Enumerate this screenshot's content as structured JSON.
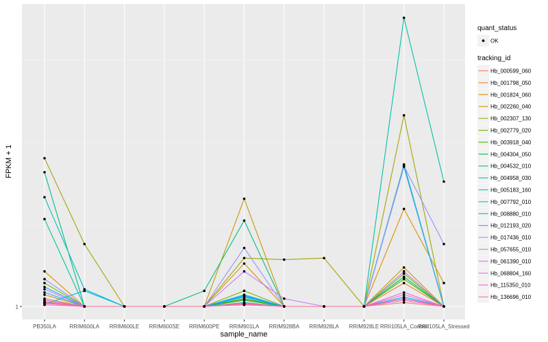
{
  "chart_data": {
    "type": "line",
    "title": "",
    "xlabel": "sample_name",
    "ylabel": "FPKM + 1",
    "ytick_labels": [
      {
        "value": 1,
        "label": "1"
      }
    ],
    "grid": true,
    "legend_position": "right",
    "categories": [
      "PB350LA",
      "RRIM600LA",
      "RRIM600LE",
      "RRIM600SE",
      "RRIM600PE",
      "RRIM901LA",
      "RRIM928BA",
      "RRIM928LA",
      "RRIM928LE",
      "RRII105LA_Control",
      "RRII105LA_Stressed"
    ],
    "legend": {
      "shape_title": "quant_status",
      "shape_items": [
        "OK"
      ],
      "color_title": "tracking_id"
    },
    "series": [
      {
        "name": "Hb_000599_060",
        "color": "#F8766D",
        "values": [
          1.06,
          1,
          1,
          1,
          1,
          1.03,
          1,
          1,
          1,
          1.05,
          1
        ]
      },
      {
        "name": "Hb_001798_050",
        "color": "#EA8331",
        "values": [
          1.1,
          1,
          1,
          1,
          1,
          1.09,
          1,
          1,
          1,
          1.3,
          1
        ]
      },
      {
        "name": "Hb_001824_060",
        "color": "#D89000",
        "values": [
          1.45,
          1,
          1,
          1,
          1,
          1.55,
          1,
          1,
          1,
          2.25,
          1.3
        ]
      },
      {
        "name": "Hb_002260_040",
        "color": "#C09B00",
        "values": [
          1.15,
          1,
          1,
          1,
          1,
          2.38,
          1,
          1,
          1,
          1.5,
          1
        ]
      },
      {
        "name": "Hb_002307_130",
        "color": "#A3A500",
        "values": [
          2.9,
          1.8,
          1,
          1,
          1,
          1.62,
          1.6,
          1.62,
          1,
          3.45,
          1
        ]
      },
      {
        "name": "Hb_002779_020",
        "color": "#7CAE00",
        "values": [
          1.3,
          1,
          1,
          1,
          1,
          1.2,
          1,
          1,
          1,
          1.42,
          1
        ]
      },
      {
        "name": "Hb_003918_040",
        "color": "#39B600",
        "values": [
          1.05,
          1,
          1,
          1,
          1,
          1.1,
          1,
          1,
          1,
          1.35,
          1
        ]
      },
      {
        "name": "Hb_004304_050",
        "color": "#00BB4E",
        "values": [
          1.08,
          1,
          1,
          1,
          1,
          1.08,
          1,
          1,
          1,
          1.38,
          1
        ]
      },
      {
        "name": "Hb_004532_010",
        "color": "#00BF7D",
        "values": [
          2.72,
          1,
          1,
          1,
          1.2,
          2.1,
          1,
          1,
          1,
          2.79,
          1
        ]
      },
      {
        "name": "Hb_004958_030",
        "color": "#00C1A3",
        "values": [
          2.12,
          1,
          1,
          1,
          1,
          1.05,
          1,
          1,
          1,
          4.7,
          2.6
        ]
      },
      {
        "name": "Hb_005183_160",
        "color": "#00BFC4",
        "values": [
          2.4,
          1.22,
          1,
          1,
          1,
          1.15,
          1,
          1,
          1,
          2.82,
          1
        ]
      },
      {
        "name": "Hb_007792_010",
        "color": "#00BAE0",
        "values": [
          1.25,
          1,
          1,
          1,
          1,
          1.13,
          1,
          1,
          1,
          1.1,
          1
        ]
      },
      {
        "name": "Hb_008880_010",
        "color": "#00B0F6",
        "values": [
          1.03,
          1.2,
          1,
          1,
          1,
          1.12,
          1,
          1,
          1,
          1.12,
          1
        ]
      },
      {
        "name": "Hb_012193_020",
        "color": "#35A2FF",
        "values": [
          1.18,
          1,
          1,
          1,
          1,
          1.14,
          1,
          1,
          1,
          2.8,
          1
        ]
      },
      {
        "name": "Hb_017436_010",
        "color": "#9590FF",
        "values": [
          1.35,
          1,
          1,
          1,
          1,
          1.75,
          1,
          1,
          1,
          2.8,
          1.8
        ]
      },
      {
        "name": "Hb_057655_010",
        "color": "#C77CFF",
        "values": [
          1.22,
          1,
          1,
          1,
          1,
          1.45,
          1.1,
          1,
          1,
          1.45,
          1
        ]
      },
      {
        "name": "Hb_061390_010",
        "color": "#E76BF3",
        "values": [
          1.08,
          1,
          1,
          1,
          1,
          1.02,
          1,
          1,
          1,
          1.15,
          1
        ]
      },
      {
        "name": "Hb_068804_160",
        "color": "#FA62DB",
        "values": [
          1.02,
          1,
          1,
          1,
          1,
          1.02,
          1,
          1,
          1,
          1.08,
          1
        ]
      },
      {
        "name": "Hb_115350_010",
        "color": "#FF62BC",
        "values": [
          1.04,
          1,
          1,
          1,
          1,
          1.04,
          1,
          1,
          1,
          1.18,
          1
        ]
      },
      {
        "name": "Hb_136696_010",
        "color": "#FF6C91",
        "values": [
          1.05,
          1,
          1,
          1,
          1,
          1.04,
          1,
          1,
          1,
          1.1,
          1
        ]
      }
    ]
  }
}
